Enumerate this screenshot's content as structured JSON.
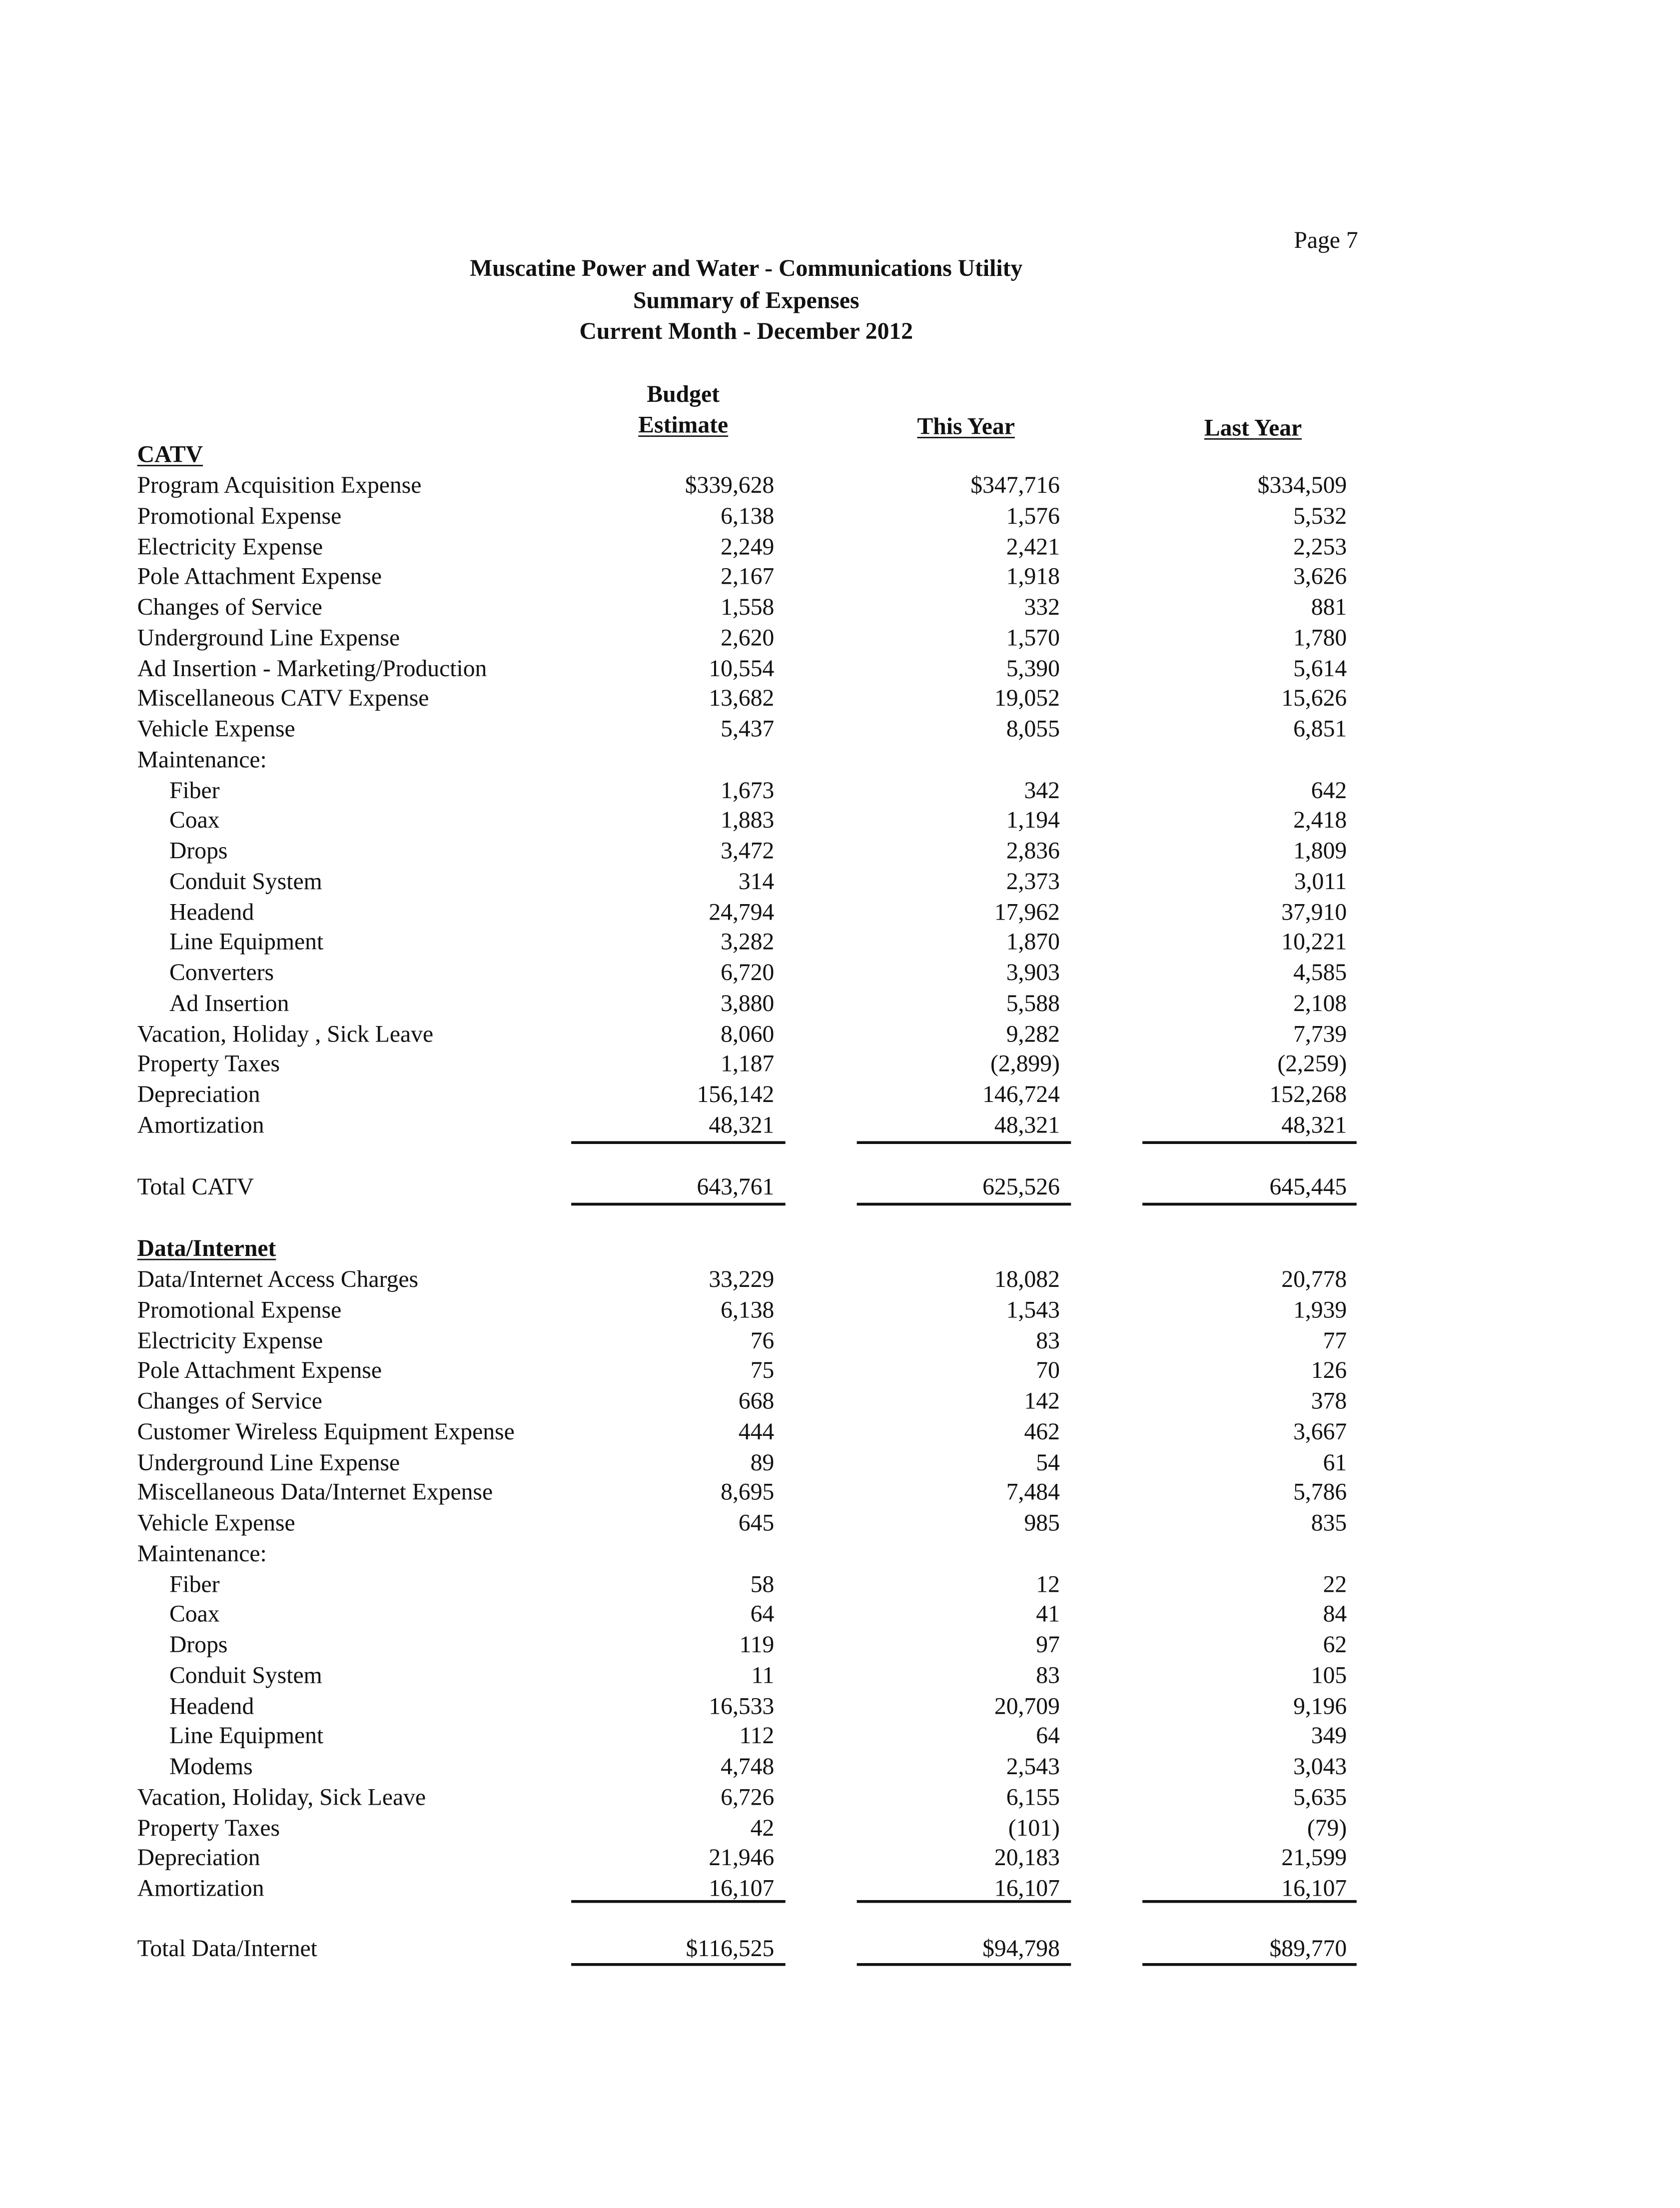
{
  "page_label": "Page 7",
  "titles": [
    "Muscatine Power and Water - Communications Utility",
    "Summary of Expenses",
    "Current Month - December 2012"
  ],
  "columns": {
    "budget_line1": "Budget",
    "budget_line2": "Estimate",
    "this_year": "This Year",
    "last_year": "Last Year"
  },
  "sections": [
    {
      "heading": "CATV",
      "rows": [
        {
          "label": "Program Acquisition Expense",
          "indent": false,
          "values": [
            "$339,628",
            "$347,716",
            "$334,509"
          ]
        },
        {
          "label": "Promotional Expense",
          "indent": false,
          "values": [
            "6,138",
            "1,576",
            "5,532"
          ]
        },
        {
          "label": "Electricity Expense",
          "indent": false,
          "values": [
            "2,249",
            "2,421",
            "2,253"
          ]
        },
        {
          "label": "Pole Attachment Expense",
          "indent": false,
          "values": [
            "2,167",
            "1,918",
            "3,626"
          ]
        },
        {
          "label": "Changes of Service",
          "indent": false,
          "values": [
            "1,558",
            "332",
            "881"
          ]
        },
        {
          "label": "Underground Line Expense",
          "indent": false,
          "values": [
            "2,620",
            "1,570",
            "1,780"
          ]
        },
        {
          "label": "Ad Insertion - Marketing/Production",
          "indent": false,
          "values": [
            "10,554",
            "5,390",
            "5,614"
          ]
        },
        {
          "label": "Miscellaneous CATV Expense",
          "indent": false,
          "values": [
            "13,682",
            "19,052",
            "15,626"
          ]
        },
        {
          "label": "Vehicle Expense",
          "indent": false,
          "values": [
            "5,437",
            "8,055",
            "6,851"
          ]
        },
        {
          "label": "Maintenance:",
          "indent": false,
          "values": [
            "",
            "",
            ""
          ]
        },
        {
          "label": "Fiber",
          "indent": true,
          "values": [
            "1,673",
            "342",
            "642"
          ]
        },
        {
          "label": "Coax",
          "indent": true,
          "values": [
            "1,883",
            "1,194",
            "2,418"
          ]
        },
        {
          "label": "Drops",
          "indent": true,
          "values": [
            "3,472",
            "2,836",
            "1,809"
          ]
        },
        {
          "label": "Conduit System",
          "indent": true,
          "values": [
            "314",
            "2,373",
            "3,011"
          ]
        },
        {
          "label": "Headend",
          "indent": true,
          "values": [
            "24,794",
            "17,962",
            "37,910"
          ]
        },
        {
          "label": "Line Equipment",
          "indent": true,
          "values": [
            "3,282",
            "1,870",
            "10,221"
          ]
        },
        {
          "label": "Converters",
          "indent": true,
          "values": [
            "6,720",
            "3,903",
            "4,585"
          ]
        },
        {
          "label": "Ad Insertion",
          "indent": true,
          "values": [
            "3,880",
            "5,588",
            "2,108"
          ]
        },
        {
          "label": "Vacation, Holiday , Sick Leave",
          "indent": false,
          "values": [
            "8,060",
            "9,282",
            "7,739"
          ]
        },
        {
          "label": "Property Taxes",
          "indent": false,
          "values": [
            "1,187",
            "(2,899)",
            "(2,259)"
          ]
        },
        {
          "label": "Depreciation",
          "indent": false,
          "values": [
            "156,142",
            "146,724",
            "152,268"
          ]
        },
        {
          "label": "Amortization",
          "indent": false,
          "values": [
            "48,321",
            "48,321",
            "48,321"
          ]
        }
      ],
      "total": {
        "label": "Total CATV",
        "values": [
          "643,761",
          "625,526",
          "645,445"
        ]
      }
    },
    {
      "heading": "Data/Internet",
      "rows": [
        {
          "label": "Data/Internet Access Charges",
          "indent": false,
          "values": [
            "33,229",
            "18,082",
            "20,778"
          ]
        },
        {
          "label": "Promotional Expense",
          "indent": false,
          "values": [
            "6,138",
            "1,543",
            "1,939"
          ]
        },
        {
          "label": "Electricity Expense",
          "indent": false,
          "values": [
            "76",
            "83",
            "77"
          ]
        },
        {
          "label": "Pole Attachment Expense",
          "indent": false,
          "values": [
            "75",
            "70",
            "126"
          ]
        },
        {
          "label": "Changes of Service",
          "indent": false,
          "values": [
            "668",
            "142",
            "378"
          ]
        },
        {
          "label": "Customer Wireless Equipment Expense",
          "indent": false,
          "values": [
            "444",
            "462",
            "3,667"
          ]
        },
        {
          "label": "Underground Line Expense",
          "indent": false,
          "values": [
            "89",
            "54",
            "61"
          ]
        },
        {
          "label": "Miscellaneous Data/Internet Expense",
          "indent": false,
          "values": [
            "8,695",
            "7,484",
            "5,786"
          ]
        },
        {
          "label": "Vehicle Expense",
          "indent": false,
          "values": [
            "645",
            "985",
            "835"
          ]
        },
        {
          "label": "Maintenance:",
          "indent": false,
          "values": [
            "",
            "",
            ""
          ]
        },
        {
          "label": "Fiber",
          "indent": true,
          "values": [
            "58",
            "12",
            "22"
          ]
        },
        {
          "label": "Coax",
          "indent": true,
          "values": [
            "64",
            "41",
            "84"
          ]
        },
        {
          "label": "Drops",
          "indent": true,
          "values": [
            "119",
            "97",
            "62"
          ]
        },
        {
          "label": "Conduit System",
          "indent": true,
          "values": [
            "11",
            "83",
            "105"
          ]
        },
        {
          "label": "Headend",
          "indent": true,
          "values": [
            "16,533",
            "20,709",
            "9,196"
          ]
        },
        {
          "label": "Line Equipment",
          "indent": true,
          "values": [
            "112",
            "64",
            "349"
          ]
        },
        {
          "label": "Modems",
          "indent": true,
          "values": [
            "4,748",
            "2,543",
            "3,043"
          ]
        },
        {
          "label": "Vacation, Holiday, Sick Leave",
          "indent": false,
          "values": [
            "6,726",
            "6,155",
            "5,635"
          ]
        },
        {
          "label": "Property Taxes",
          "indent": false,
          "values": [
            "42",
            "(101)",
            "(79)"
          ]
        },
        {
          "label": "Depreciation",
          "indent": false,
          "values": [
            "21,946",
            "20,183",
            "21,599"
          ]
        },
        {
          "label": "Amortization",
          "indent": false,
          "values": [
            "16,107",
            "16,107",
            "16,107"
          ]
        }
      ],
      "total": {
        "label": "Total Data/Internet",
        "values": [
          "$116,525",
          "$94,798",
          "$89,770"
        ]
      }
    }
  ]
}
